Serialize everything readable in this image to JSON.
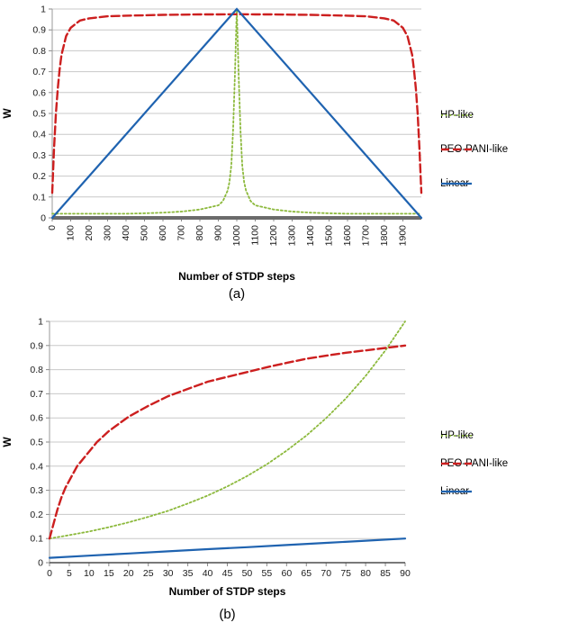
{
  "page": {
    "background": "#ffffff"
  },
  "chart_data": [
    {
      "type": "line",
      "caption": "(a)",
      "xlabel": "Number of STDP steps",
      "ylabel": "W",
      "xlim": [
        0,
        2000
      ],
      "ylim": [
        0,
        1
      ],
      "x_ticks": [
        0,
        100,
        200,
        300,
        400,
        500,
        600,
        700,
        800,
        900,
        1000,
        1100,
        1200,
        1300,
        1400,
        1500,
        1600,
        1700,
        1800,
        1900
      ],
      "y_ticks": [
        0,
        0.1,
        0.2,
        0.3,
        0.4,
        0.5,
        0.6,
        0.7,
        0.8,
        0.9,
        1
      ],
      "x_tick_rotated": true,
      "grid": "horizontal-only",
      "legend_position": "right",
      "x_axis_color": "#6b6b6b",
      "x_axis_weight": 4,
      "series": [
        {
          "name": "HP-like",
          "color": "#8cb93c",
          "style": "dotted",
          "dash": "2 2.6",
          "width": 1.8,
          "points": [
            [
              0,
              0.02
            ],
            [
              100,
              0.02
            ],
            [
              200,
              0.02
            ],
            [
              300,
              0.02
            ],
            [
              400,
              0.02
            ],
            [
              500,
              0.022
            ],
            [
              600,
              0.025
            ],
            [
              700,
              0.03
            ],
            [
              800,
              0.04
            ],
            [
              850,
              0.05
            ],
            [
              900,
              0.06
            ],
            [
              925,
              0.08
            ],
            [
              950,
              0.13
            ],
            [
              960,
              0.17
            ],
            [
              970,
              0.25
            ],
            [
              980,
              0.42
            ],
            [
              990,
              0.68
            ],
            [
              995,
              0.85
            ],
            [
              1000,
              1.0
            ],
            [
              1005,
              0.85
            ],
            [
              1010,
              0.68
            ],
            [
              1020,
              0.42
            ],
            [
              1030,
              0.25
            ],
            [
              1040,
              0.17
            ],
            [
              1050,
              0.13
            ],
            [
              1075,
              0.08
            ],
            [
              1100,
              0.06
            ],
            [
              1150,
              0.05
            ],
            [
              1200,
              0.04
            ],
            [
              1300,
              0.03
            ],
            [
              1400,
              0.025
            ],
            [
              1500,
              0.022
            ],
            [
              1600,
              0.02
            ],
            [
              1700,
              0.02
            ],
            [
              1800,
              0.02
            ],
            [
              1900,
              0.02
            ],
            [
              2000,
              0.02
            ]
          ]
        },
        {
          "name": "PEO-PANI-like",
          "color": "#cc1f1f",
          "style": "dashed",
          "dash": "9 4",
          "width": 2.4,
          "points": [
            [
              0,
              0.12
            ],
            [
              10,
              0.33
            ],
            [
              20,
              0.5
            ],
            [
              30,
              0.62
            ],
            [
              40,
              0.71
            ],
            [
              50,
              0.78
            ],
            [
              75,
              0.87
            ],
            [
              100,
              0.91
            ],
            [
              150,
              0.945
            ],
            [
              200,
              0.955
            ],
            [
              300,
              0.965
            ],
            [
              400,
              0.968
            ],
            [
              500,
              0.97
            ],
            [
              600,
              0.972
            ],
            [
              700,
              0.973
            ],
            [
              800,
              0.974
            ],
            [
              900,
              0.974
            ],
            [
              1000,
              0.975
            ],
            [
              1100,
              0.974
            ],
            [
              1200,
              0.974
            ],
            [
              1300,
              0.973
            ],
            [
              1400,
              0.972
            ],
            [
              1500,
              0.97
            ],
            [
              1600,
              0.968
            ],
            [
              1700,
              0.965
            ],
            [
              1800,
              0.955
            ],
            [
              1850,
              0.945
            ],
            [
              1900,
              0.91
            ],
            [
              1925,
              0.87
            ],
            [
              1950,
              0.78
            ],
            [
              1960,
              0.71
            ],
            [
              1970,
              0.62
            ],
            [
              1980,
              0.5
            ],
            [
              1990,
              0.33
            ],
            [
              2000,
              0.12
            ]
          ]
        },
        {
          "name": "Linear",
          "color": "#1f63b0",
          "style": "solid",
          "dash": "",
          "width": 2.2,
          "points": [
            [
              0,
              0
            ],
            [
              1000,
              1
            ],
            [
              2000,
              0
            ]
          ]
        }
      ]
    },
    {
      "type": "line",
      "caption": "(b)",
      "xlabel": "Number of STDP steps",
      "ylabel": "W",
      "xlim": [
        0,
        90
      ],
      "ylim": [
        0,
        1
      ],
      "x_ticks": [
        0,
        5,
        10,
        15,
        20,
        25,
        30,
        35,
        40,
        45,
        50,
        55,
        60,
        65,
        70,
        75,
        80,
        85,
        90
      ],
      "y_ticks": [
        0,
        0.1,
        0.2,
        0.3,
        0.4,
        0.5,
        0.6,
        0.7,
        0.8,
        0.9,
        1
      ],
      "x_tick_rotated": false,
      "grid": "horizontal-only",
      "legend_position": "right",
      "x_axis_color": "#4d4d4d",
      "x_axis_weight": 1.4,
      "series": [
        {
          "name": "HP-like",
          "color": "#8cb93c",
          "style": "dotted",
          "dash": "2 2.6",
          "width": 1.8,
          "points": [
            [
              0,
              0.1
            ],
            [
              5,
              0.114
            ],
            [
              10,
              0.129
            ],
            [
              15,
              0.147
            ],
            [
              20,
              0.167
            ],
            [
              25,
              0.19
            ],
            [
              30,
              0.215
            ],
            [
              35,
              0.245
            ],
            [
              40,
              0.278
            ],
            [
              45,
              0.316
            ],
            [
              50,
              0.359
            ],
            [
              55,
              0.408
            ],
            [
              60,
              0.464
            ],
            [
              65,
              0.527
            ],
            [
              70,
              0.599
            ],
            [
              75,
              0.681
            ],
            [
              80,
              0.774
            ],
            [
              85,
              0.88
            ],
            [
              90,
              1.0
            ]
          ]
        },
        {
          "name": "PEO-PANI-like",
          "color": "#cc1f1f",
          "style": "dashed",
          "dash": "9 4",
          "width": 2.4,
          "points": [
            [
              0,
              0.1
            ],
            [
              1,
              0.16
            ],
            [
              2,
              0.22
            ],
            [
              3,
              0.27
            ],
            [
              4,
              0.31
            ],
            [
              5,
              0.34
            ],
            [
              7,
              0.4
            ],
            [
              10,
              0.46
            ],
            [
              12,
              0.5
            ],
            [
              15,
              0.545
            ],
            [
              20,
              0.605
            ],
            [
              25,
              0.65
            ],
            [
              30,
              0.69
            ],
            [
              35,
              0.72
            ],
            [
              40,
              0.75
            ],
            [
              45,
              0.77
            ],
            [
              50,
              0.79
            ],
            [
              55,
              0.81
            ],
            [
              60,
              0.828
            ],
            [
              65,
              0.845
            ],
            [
              70,
              0.858
            ],
            [
              75,
              0.87
            ],
            [
              80,
              0.88
            ],
            [
              85,
              0.89
            ],
            [
              90,
              0.9
            ]
          ]
        },
        {
          "name": "Linear",
          "color": "#1f63b0",
          "style": "solid",
          "dash": "",
          "width": 2.2,
          "points": [
            [
              0,
              0.02
            ],
            [
              10,
              0.029
            ],
            [
              20,
              0.038
            ],
            [
              30,
              0.047
            ],
            [
              40,
              0.056
            ],
            [
              50,
              0.064
            ],
            [
              60,
              0.073
            ],
            [
              70,
              0.082
            ],
            [
              80,
              0.091
            ],
            [
              90,
              0.1
            ]
          ]
        }
      ]
    }
  ]
}
